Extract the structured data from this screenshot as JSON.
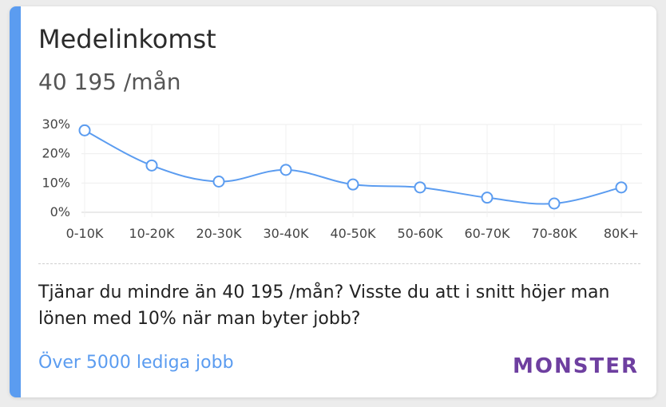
{
  "card": {
    "title": "Medelinkomst",
    "income": "40 195 /mån",
    "message": "Tjänar du mindre än 40 195 /mån? Visste du att i snitt höjer man lönen med 10% när man byter jobb?",
    "jobs_link": "Över 5000 lediga jobb",
    "brand": "MONSTER",
    "accent_color": "#5b9cf0",
    "brand_color": "#6e3fa0"
  },
  "chart_data": {
    "type": "line",
    "title": "",
    "xlabel": "",
    "ylabel": "",
    "categories": [
      "0-10K",
      "10-20K",
      "20-30K",
      "30-40K",
      "40-50K",
      "50-60K",
      "60-70K",
      "70-80K",
      "80K+"
    ],
    "values": [
      28,
      16,
      10.5,
      14.5,
      9.5,
      8.5,
      5,
      3,
      8.5
    ],
    "y_ticks": [
      "0%",
      "10%",
      "20%",
      "30%"
    ],
    "y_tick_values": [
      0,
      10,
      20,
      30
    ],
    "ylim": [
      0,
      30
    ],
    "grid": true,
    "line_color": "#5b9cf0",
    "smooth": true
  }
}
